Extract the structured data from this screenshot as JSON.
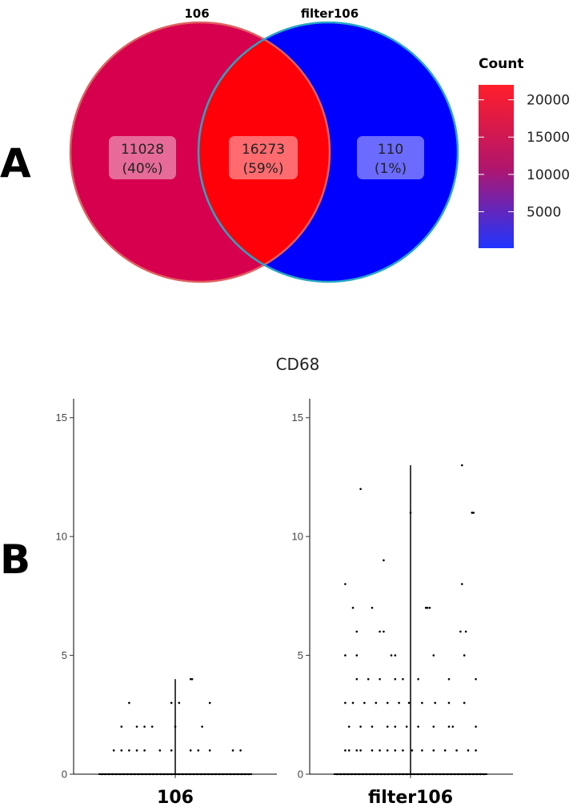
{
  "panels": {
    "a": {
      "letter": "A"
    },
    "b": {
      "letter": "B"
    }
  },
  "colors": {
    "set1_fill": "#d6004f",
    "set1_border": "#e06060",
    "intersection_fill": "#ff0008",
    "set2_fill": "#0000ff",
    "set2_border": "#29a6c4",
    "label_box": "#ffffff",
    "gradient_low": "#1f35ff",
    "gradient_mid": "#b3156b",
    "gradient_high": "#ff1e2a",
    "points": "#000000"
  },
  "chart_data": [
    {
      "type": "venn",
      "sets": [
        "106",
        "filter106"
      ],
      "regions": [
        {
          "name": "106 only",
          "count_label": "11028",
          "pct_label": "(40%)",
          "count": 11028,
          "percent": 40
        },
        {
          "name": "106 ∩ filter106",
          "count_label": "16273",
          "pct_label": "(59%)",
          "count": 16273,
          "percent": 59
        },
        {
          "name": "filter106 only",
          "count_label": "110",
          "pct_label": "(1%)",
          "count": 110,
          "percent": 1
        }
      ],
      "legend": {
        "title": "Count",
        "range": [
          110,
          22000
        ],
        "ticks": [
          {
            "value": 20000,
            "label": "20000"
          },
          {
            "value": 15000,
            "label": "15000"
          },
          {
            "value": 10000,
            "label": "10000"
          },
          {
            "value": 5000,
            "label": "5000"
          }
        ],
        "placement": "right"
      }
    },
    {
      "type": "violin-jitter",
      "title": "CD68",
      "categories": [
        "106",
        "filter106"
      ],
      "ylim": [
        0,
        15.8
      ],
      "yticks": [
        {
          "value": 0,
          "label": "0"
        },
        {
          "value": 5,
          "label": "5"
        },
        {
          "value": 10,
          "label": "10"
        },
        {
          "value": 15,
          "label": "15"
        }
      ],
      "series": [
        {
          "name": "106",
          "max": 4,
          "points": [
            {
              "x": -0.8,
              "y": 1
            },
            {
              "x": -0.7,
              "y": 1
            },
            {
              "x": -0.6,
              "y": 1
            },
            {
              "x": -0.5,
              "y": 1
            },
            {
              "x": -0.4,
              "y": 1
            },
            {
              "x": -0.2,
              "y": 1
            },
            {
              "x": -0.05,
              "y": 1
            },
            {
              "x": 0.2,
              "y": 1
            },
            {
              "x": 0.3,
              "y": 1
            },
            {
              "x": 0.45,
              "y": 1
            },
            {
              "x": 0.75,
              "y": 1
            },
            {
              "x": 0.85,
              "y": 1
            },
            {
              "x": -0.7,
              "y": 2
            },
            {
              "x": -0.5,
              "y": 2
            },
            {
              "x": -0.4,
              "y": 2
            },
            {
              "x": -0.3,
              "y": 2
            },
            {
              "x": 0.0,
              "y": 2
            },
            {
              "x": 0.35,
              "y": 2
            },
            {
              "x": -0.6,
              "y": 3
            },
            {
              "x": -0.05,
              "y": 3
            },
            {
              "x": 0.05,
              "y": 3
            },
            {
              "x": 0.45,
              "y": 3
            },
            {
              "x": 0.2,
              "y": 4
            },
            {
              "x": 0.22,
              "y": 4
            }
          ]
        },
        {
          "name": "filter106",
          "max": 13,
          "points": [
            {
              "x": -0.85,
              "y": 1
            },
            {
              "x": -0.8,
              "y": 1
            },
            {
              "x": -0.7,
              "y": 1
            },
            {
              "x": -0.65,
              "y": 1
            },
            {
              "x": -0.5,
              "y": 1
            },
            {
              "x": -0.4,
              "y": 1
            },
            {
              "x": -0.3,
              "y": 1
            },
            {
              "x": -0.2,
              "y": 1
            },
            {
              "x": -0.1,
              "y": 1
            },
            {
              "x": 0.02,
              "y": 1
            },
            {
              "x": 0.15,
              "y": 1
            },
            {
              "x": 0.3,
              "y": 1
            },
            {
              "x": 0.45,
              "y": 1
            },
            {
              "x": 0.6,
              "y": 1
            },
            {
              "x": 0.75,
              "y": 1
            },
            {
              "x": 0.85,
              "y": 1
            },
            {
              "x": -0.8,
              "y": 2
            },
            {
              "x": -0.65,
              "y": 2
            },
            {
              "x": -0.5,
              "y": 2
            },
            {
              "x": -0.3,
              "y": 2
            },
            {
              "x": -0.2,
              "y": 2
            },
            {
              "x": -0.05,
              "y": 2
            },
            {
              "x": 0.1,
              "y": 2
            },
            {
              "x": 0.3,
              "y": 2
            },
            {
              "x": 0.5,
              "y": 2
            },
            {
              "x": 0.55,
              "y": 2
            },
            {
              "x": 0.85,
              "y": 2
            },
            {
              "x": -0.85,
              "y": 3
            },
            {
              "x": -0.75,
              "y": 3
            },
            {
              "x": -0.6,
              "y": 3
            },
            {
              "x": -0.45,
              "y": 3
            },
            {
              "x": -0.3,
              "y": 3
            },
            {
              "x": -0.15,
              "y": 3
            },
            {
              "x": -0.02,
              "y": 3
            },
            {
              "x": 0.15,
              "y": 3
            },
            {
              "x": 0.32,
              "y": 3
            },
            {
              "x": 0.5,
              "y": 3
            },
            {
              "x": 0.7,
              "y": 3
            },
            {
              "x": -0.7,
              "y": 4
            },
            {
              "x": -0.55,
              "y": 4
            },
            {
              "x": -0.4,
              "y": 4
            },
            {
              "x": -0.2,
              "y": 4
            },
            {
              "x": -0.1,
              "y": 4
            },
            {
              "x": 0.1,
              "y": 4
            },
            {
              "x": 0.5,
              "y": 4
            },
            {
              "x": 0.85,
              "y": 4
            },
            {
              "x": -0.85,
              "y": 5
            },
            {
              "x": -0.7,
              "y": 5
            },
            {
              "x": -0.25,
              "y": 5
            },
            {
              "x": -0.2,
              "y": 5
            },
            {
              "x": 0.3,
              "y": 5
            },
            {
              "x": 0.7,
              "y": 5
            },
            {
              "x": -0.7,
              "y": 6
            },
            {
              "x": -0.4,
              "y": 6
            },
            {
              "x": -0.35,
              "y": 6
            },
            {
              "x": 0.65,
              "y": 6
            },
            {
              "x": 0.72,
              "y": 6
            },
            {
              "x": -0.75,
              "y": 7
            },
            {
              "x": -0.5,
              "y": 7
            },
            {
              "x": 0.2,
              "y": 7
            },
            {
              "x": 0.22,
              "y": 7
            },
            {
              "x": 0.25,
              "y": 7
            },
            {
              "x": -0.85,
              "y": 8
            },
            {
              "x": 0.67,
              "y": 8
            },
            {
              "x": -0.35,
              "y": 9
            },
            {
              "x": 0.0,
              "y": 11
            },
            {
              "x": 0.8,
              "y": 11
            },
            {
              "x": 0.82,
              "y": 11
            },
            {
              "x": -0.65,
              "y": 12
            },
            {
              "x": 0.67,
              "y": 13
            }
          ]
        }
      ]
    }
  ]
}
